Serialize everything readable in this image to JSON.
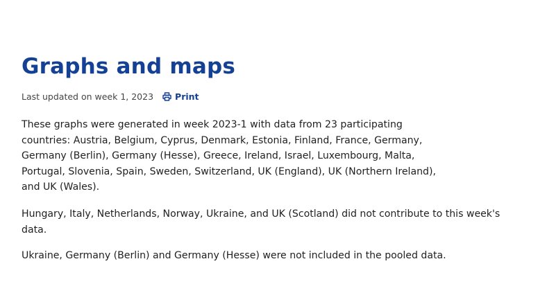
{
  "page": {
    "title": "Graphs and maps",
    "last_updated": "Last updated on week 1, 2023",
    "print_label": "Print"
  },
  "content": {
    "paragraph_1_lines": [
      "These graphs were generated in week 2023-1 with data from 23 participating",
      "countries: Austria, Belgium, Cyprus, Denmark, Estonia, Finland, France, Germany,",
      "Germany (Berlin), Germany (Hesse), Greece, Ireland, Israel, Luxembourg, Malta,",
      "Portugal, Slovenia, Spain, Sweden, Switzerland, UK (England), UK (Northern Ireland),",
      "and UK (Wales)."
    ],
    "paragraph_2_lines": [
      "Hungary, Italy, Netherlands, Norway, Ukraine, and UK (Scotland) did not contribute to this week's",
      "data."
    ],
    "paragraph_3": "Ukraine, Germany (Berlin) and Germany (Hesse) were not included in the pooled data."
  },
  "icons": {
    "print": "printer-icon"
  },
  "colors": {
    "title": "#154194",
    "link": "#154194",
    "body_text": "#1f1f1f",
    "meta_text": "#444444",
    "background": "#ffffff"
  }
}
